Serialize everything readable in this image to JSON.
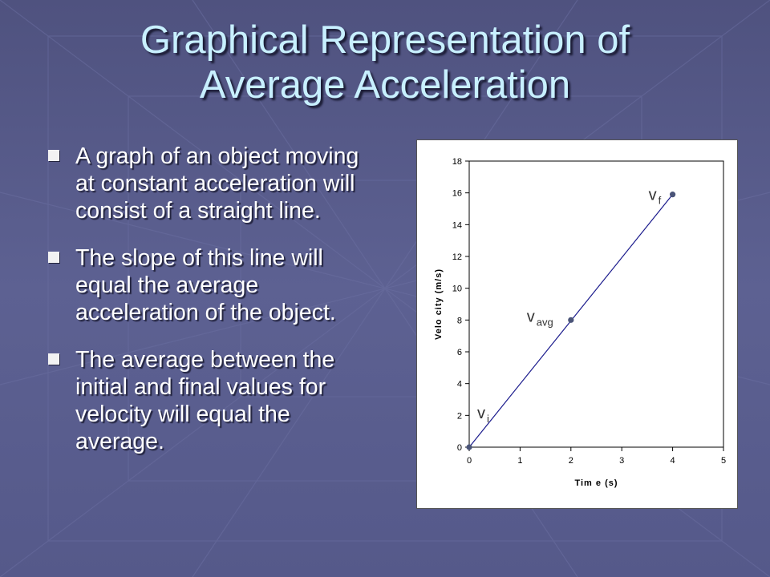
{
  "slide": {
    "title_line1": "Graphical Representation of",
    "title_line2": "Average Acceleration",
    "bullets": [
      "A graph of an object moving at constant acceleration will consist of a straight line.",
      "The slope of this line will equal the average acceleration of the object.",
      "The average between the initial and final values for velocity will equal the average."
    ]
  },
  "chart_data": {
    "type": "line",
    "xlabel": "Tim e (s)",
    "ylabel": "Velo city (m/s)",
    "xlim": [
      0,
      5
    ],
    "ylim": [
      0,
      18
    ],
    "x_ticks": [
      0,
      1,
      2,
      3,
      4,
      5
    ],
    "y_ticks": [
      0,
      2,
      4,
      6,
      8,
      10,
      12,
      14,
      16,
      18
    ],
    "series": [
      {
        "x": [
          0,
          4
        ],
        "y": [
          0,
          15.9
        ],
        "color": "#1a1a8c"
      }
    ],
    "points": [
      {
        "x": 0,
        "y": 0,
        "label": "v",
        "sub": "i"
      },
      {
        "x": 2,
        "y": 8,
        "label": "v",
        "sub": "avg"
      },
      {
        "x": 4,
        "y": 15.9,
        "label": "v",
        "sub": "f"
      }
    ],
    "grid": false
  },
  "colors": {
    "background": "#5b5f8e",
    "title": "#c8f0ff",
    "text": "#ffffff",
    "line": "#1a1a8c",
    "marker": "#4a5478"
  }
}
